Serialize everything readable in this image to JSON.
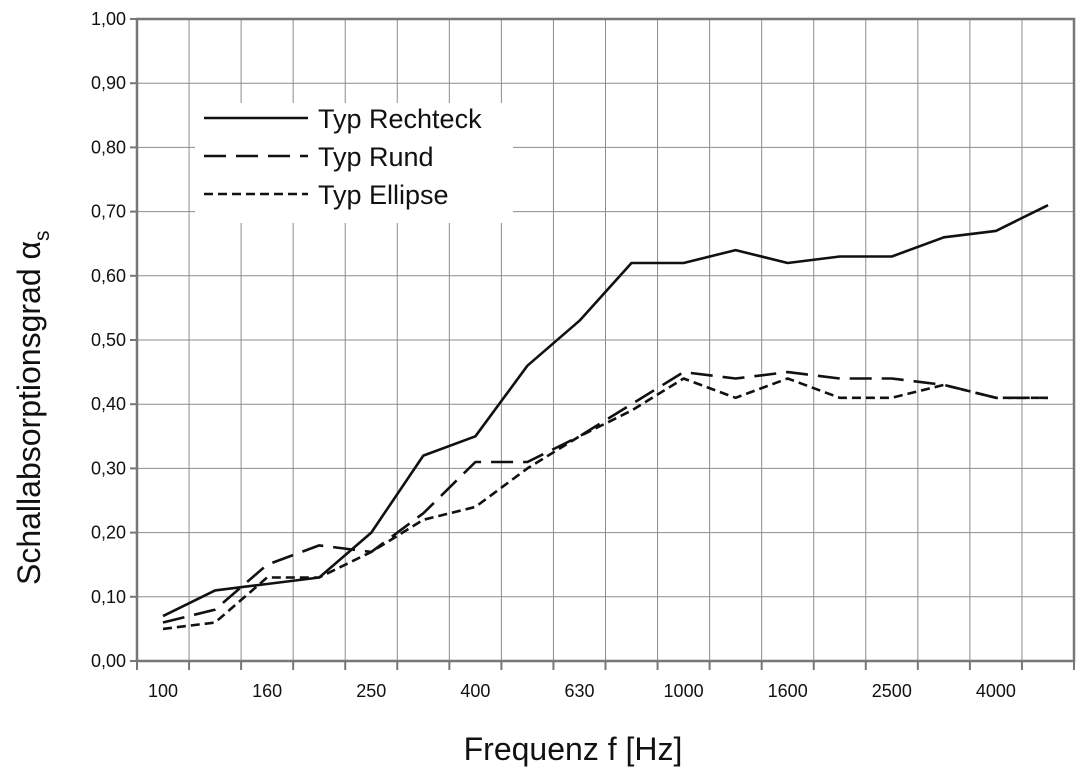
{
  "chart_data": {
    "type": "line",
    "title": "",
    "xlabel": "Frequenz f [Hz]",
    "ylabel": "Schallabsorptionsgrad α",
    "ylabel_subscript": "s",
    "ylim": [
      0,
      1
    ],
    "grid": true,
    "legend_position": "top-left",
    "categories": [
      "100",
      "125",
      "160",
      "200",
      "250",
      "315",
      "400",
      "500",
      "630",
      "800",
      "1000",
      "1250",
      "1600",
      "2000",
      "2500",
      "3150",
      "4000",
      "5000"
    ],
    "x_tick_labels": [
      "100",
      "160",
      "250",
      "400",
      "630",
      "1000",
      "1600",
      "2500",
      "4000"
    ],
    "y_tick_labels": [
      "0,00",
      "0,10",
      "0,20",
      "0,30",
      "0,40",
      "0,50",
      "0,60",
      "0,70",
      "0,80",
      "0,90",
      "1,00"
    ],
    "series": [
      {
        "name": "Typ Rechteck",
        "dash": "solid",
        "values": [
          0.07,
          0.11,
          0.12,
          0.13,
          0.2,
          0.32,
          0.35,
          0.46,
          0.53,
          0.62,
          0.62,
          0.64,
          0.62,
          0.63,
          0.63,
          0.66,
          0.67,
          0.71
        ]
      },
      {
        "name": "Typ Rund",
        "dash": "long-dash",
        "values": [
          0.06,
          0.08,
          0.15,
          0.18,
          0.17,
          0.23,
          0.31,
          0.31,
          0.35,
          0.4,
          0.45,
          0.44,
          0.45,
          0.44,
          0.44,
          0.43,
          0.41,
          0.41
        ]
      },
      {
        "name": "Typ Ellipse",
        "dash": "short-dash",
        "values": [
          0.05,
          0.06,
          0.13,
          0.13,
          0.17,
          0.22,
          0.24,
          0.3,
          0.35,
          0.39,
          0.44,
          0.41,
          0.44,
          0.41,
          0.41,
          0.43,
          0.41,
          0.41
        ]
      }
    ]
  }
}
